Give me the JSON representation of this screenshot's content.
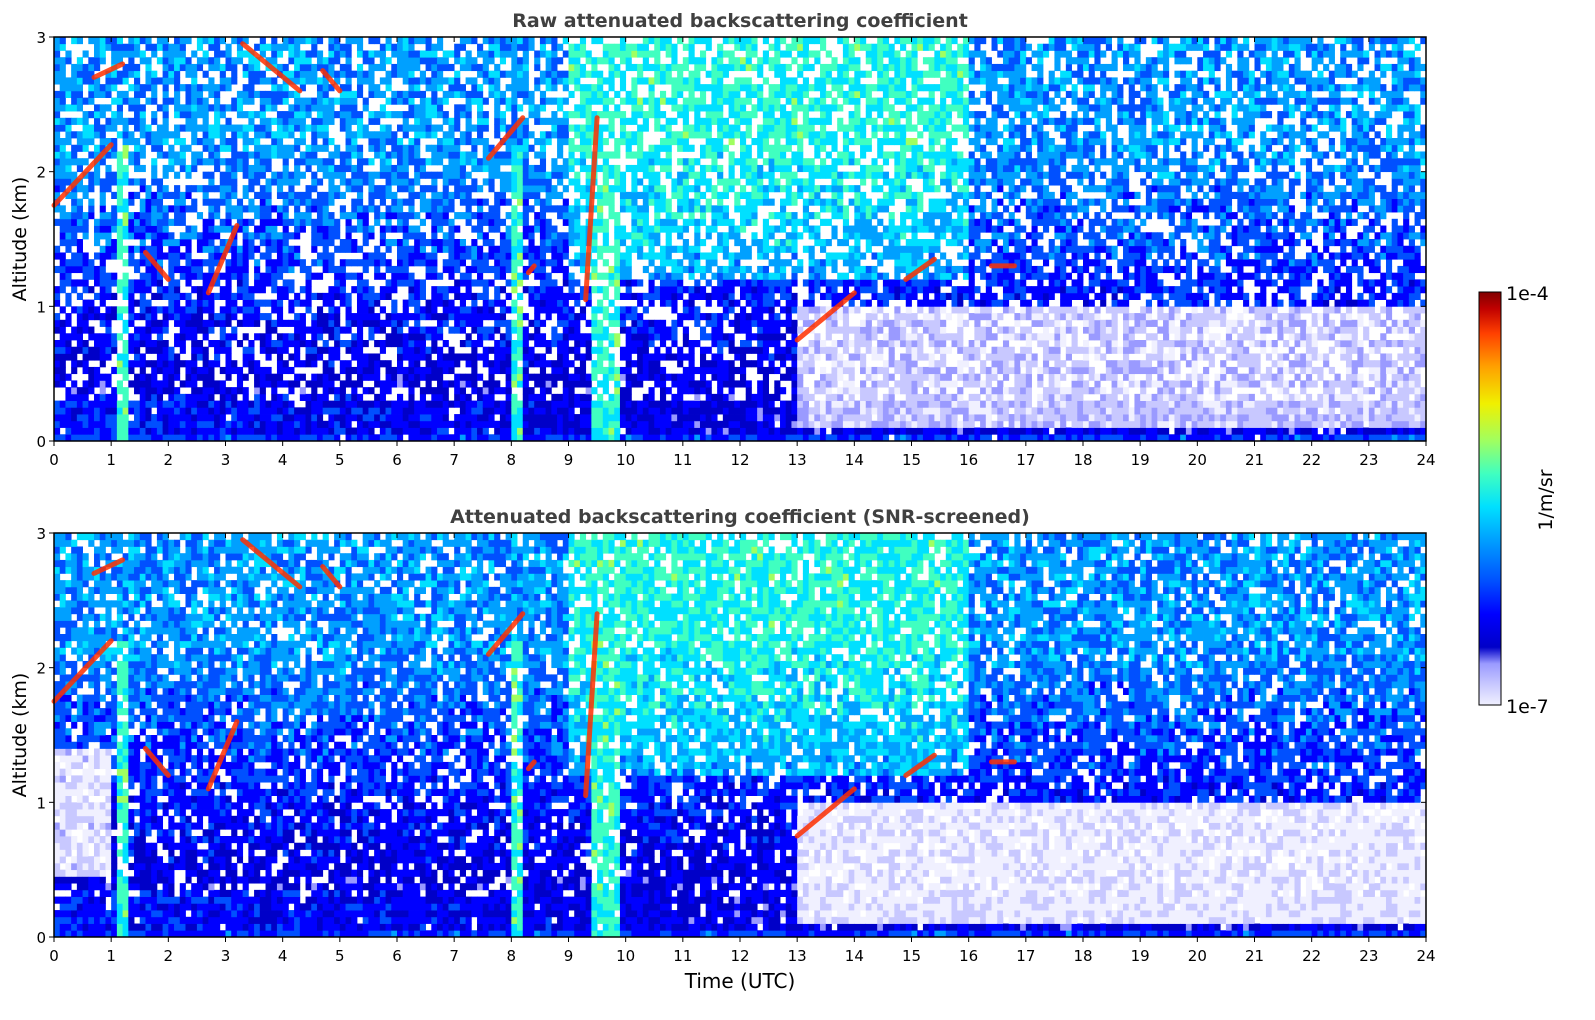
{
  "chart_data": [
    {
      "type": "heatmap",
      "title": "Raw attenuated backscattering coefficient",
      "xlabel": "",
      "ylabel": "Altitude (km)",
      "xlim": [
        0,
        24
      ],
      "ylim": [
        0,
        3
      ],
      "xticks": [
        "0",
        "1",
        "2",
        "3",
        "4",
        "5",
        "6",
        "7",
        "8",
        "9",
        "10",
        "11",
        "12",
        "13",
        "14",
        "15",
        "16",
        "17",
        "18",
        "19",
        "20",
        "21",
        "22",
        "23",
        "24"
      ],
      "yticks": [
        "0",
        "1",
        "2",
        "3"
      ],
      "colormap": "jet",
      "color_range": [
        "1e-7",
        "1e-4"
      ],
      "screened": false
    },
    {
      "type": "heatmap",
      "title": "Attenuated backscattering coefficient (SNR-screened)",
      "xlabel": "Time (UTC)",
      "ylabel": "Altitude (km)",
      "xlim": [
        0,
        24
      ],
      "ylim": [
        0,
        3
      ],
      "xticks": [
        "0",
        "1",
        "2",
        "3",
        "4",
        "5",
        "6",
        "7",
        "8",
        "9",
        "10",
        "11",
        "12",
        "13",
        "14",
        "15",
        "16",
        "17",
        "18",
        "19",
        "20",
        "21",
        "22",
        "23",
        "24"
      ],
      "yticks": [
        "0",
        "1",
        "2",
        "3"
      ],
      "colormap": "jet",
      "color_range": [
        "1e-7",
        "1e-4"
      ],
      "screened": true
    }
  ],
  "colorbar": {
    "max_label": "1e-4",
    "min_label": "1e-7",
    "unit_label": "1/m/sr",
    "colors": [
      "#f0f0ff",
      "#c8c8ff",
      "#9a9aff",
      "#0000c8",
      "#0000ff",
      "#0050ff",
      "#00a0ff",
      "#00e0ff",
      "#40ffc0",
      "#a0ff60",
      "#f0f000",
      "#ffa000",
      "#ff4000",
      "#c00000",
      "#800000"
    ]
  }
}
